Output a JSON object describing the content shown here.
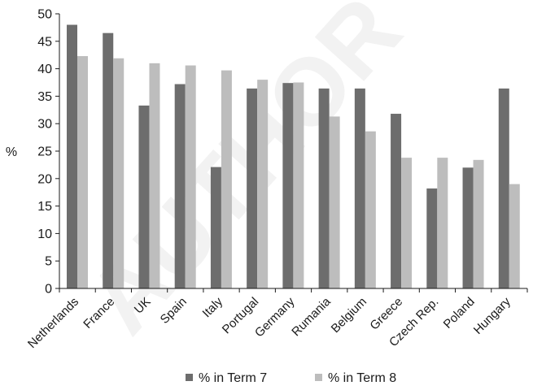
{
  "chart_data": {
    "type": "bar",
    "title": "",
    "xlabel": "",
    "ylabel": "%",
    "ylim": [
      0,
      50
    ],
    "yticks": [
      0,
      5,
      10,
      15,
      20,
      25,
      30,
      35,
      40,
      45,
      50
    ],
    "grid": false,
    "legend_position": "bottom",
    "categories": [
      "Netherlands",
      "France",
      "UK",
      "Spain",
      "Italy",
      "Portugal",
      "Germany",
      "Rumania",
      "Belgium",
      "Greece",
      "Czech Rep.",
      "Poland",
      "Hungary"
    ],
    "series": [
      {
        "name": "% in Term 7",
        "color": "#6d6d6d",
        "values": [
          48.0,
          46.5,
          33.3,
          37.2,
          22.1,
          36.4,
          37.4,
          36.4,
          36.4,
          31.8,
          18.2,
          22.0,
          36.4
        ]
      },
      {
        "name": "% in Term 8",
        "color": "#bdbdbd",
        "values": [
          42.3,
          41.9,
          41.0,
          40.6,
          39.7,
          38.0,
          37.5,
          31.3,
          28.6,
          23.8,
          23.8,
          23.4,
          19.0
        ]
      }
    ]
  },
  "watermark": {
    "text": "AUTHOR"
  }
}
